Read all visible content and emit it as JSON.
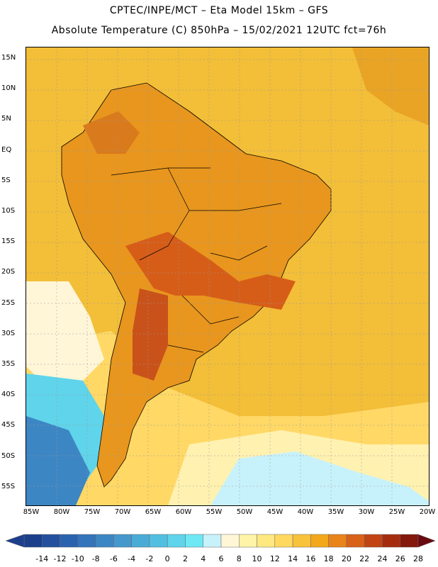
{
  "title": {
    "line1": "CPTEC/INPE/MCT –  Eta Model 15km – GFS",
    "line2": "Absolute Temperature (C) 850hPa – 15/02/2021 12UTC fct=76h"
  },
  "axes": {
    "lat_labels": [
      "15N",
      "10N",
      "5N",
      "EQ",
      "5S",
      "10S",
      "15S",
      "20S",
      "25S",
      "30S",
      "35S",
      "40S",
      "45S",
      "50S",
      "55S"
    ],
    "lon_labels": [
      "85W",
      "80W",
      "75W",
      "70W",
      "65W",
      "60W",
      "55W",
      "50W",
      "45W",
      "40W",
      "35W",
      "30W",
      "25W",
      "20W"
    ]
  },
  "colorbar": {
    "labels": [
      "-14",
      "-12",
      "-10",
      "-8",
      "-6",
      "-4",
      "-2",
      "0",
      "2",
      "4",
      "6",
      "8",
      "10",
      "12",
      "14",
      "16",
      "18",
      "20",
      "22",
      "24",
      "26",
      "28"
    ],
    "colors": [
      "#1c3f8c",
      "#23509e",
      "#2b62b0",
      "#3474bb",
      "#3d86c4",
      "#4498cc",
      "#4aabd6",
      "#52bfe0",
      "#5fd4ea",
      "#6ee8f4",
      "#c8f2fb",
      "#fff6d8",
      "#fff4a8",
      "#ffe880",
      "#ffd860",
      "#f8c23a",
      "#f2a81a",
      "#e8841a",
      "#d9611a",
      "#c24414",
      "#a62c10",
      "#84180c"
    ]
  },
  "map": {
    "ocean_base_color": "#f3be38",
    "continent_color": "#e8961e",
    "hot_core_color": "#d65d18",
    "cold_water_color": "#4aabd6"
  }
}
